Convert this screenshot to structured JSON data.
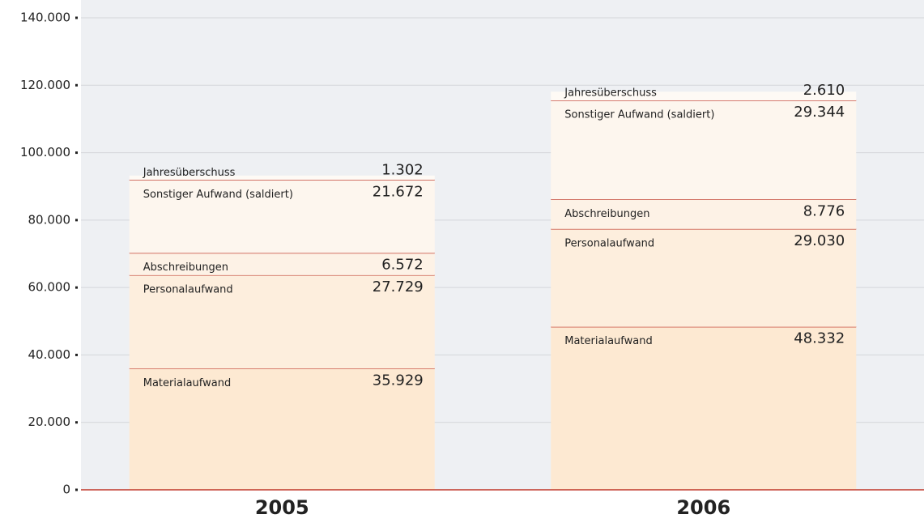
{
  "chart_data": {
    "type": "stacked_bar",
    "categories": [
      "2005",
      "2006"
    ],
    "series": [
      {
        "name": "Materialaufwand",
        "color": "#fde9d2",
        "values": [
          35929,
          48332
        ],
        "value_labels": [
          "35.929",
          "48.332"
        ]
      },
      {
        "name": "Personalaufwand",
        "color": "#fdeedd",
        "values": [
          27729,
          29030
        ],
        "value_labels": [
          "27.729",
          "29.030"
        ]
      },
      {
        "name": "Abschreibungen",
        "color": "#fdf2e6",
        "values": [
          6572,
          8776
        ],
        "value_labels": [
          "6.572",
          "8.776"
        ]
      },
      {
        "name": "Sonstiger Aufwand (saldiert)",
        "color": "#fdf6ee",
        "values": [
          21672,
          29344
        ],
        "value_labels": [
          "21.672",
          "29.344"
        ]
      },
      {
        "name": "Jahresüberschuss",
        "color": "#fefaf5",
        "values": [
          1302,
          2610
        ],
        "value_labels": [
          "1.302",
          "2.610"
        ]
      }
    ],
    "ylim": [
      0,
      140000
    ],
    "yticks": [
      0,
      {
        "value": 20000,
        "label": "20.000"
      },
      {
        "value": 40000,
        "label": "40.000"
      },
      {
        "value": 60000,
        "label": "60.000"
      },
      {
        "value": 80000,
        "label": "80.000"
      },
      {
        "value": 100000,
        "label": "100.000"
      },
      {
        "value": 120000,
        "label": "120.000"
      },
      {
        "value": 140000,
        "label": "140.000"
      }
    ],
    "grid": true
  }
}
